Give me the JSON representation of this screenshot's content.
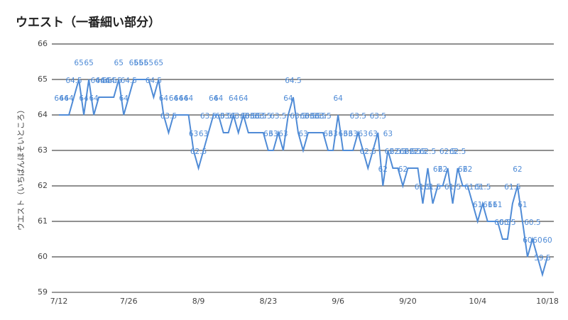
{
  "chart_data": {
    "type": "line",
    "title": "ウエスト（一番細い部分）",
    "y_label": "ウエスト（いちばんほそいところ）",
    "categories": [
      "7/12",
      null,
      null,
      null,
      null,
      null,
      null,
      null,
      null,
      null,
      null,
      null,
      null,
      null,
      "7/26",
      null,
      null,
      null,
      null,
      null,
      null,
      null,
      null,
      null,
      null,
      null,
      null,
      null,
      "8/9",
      null,
      null,
      null,
      null,
      null,
      null,
      null,
      null,
      null,
      null,
      null,
      null,
      null,
      "8/23",
      null,
      null,
      null,
      null,
      null,
      null,
      null,
      null,
      null,
      null,
      null,
      null,
      null,
      "9/6",
      null,
      null,
      null,
      null,
      null,
      null,
      null,
      null,
      null,
      null,
      null,
      null,
      null,
      "9/20",
      null,
      null,
      null,
      null,
      null,
      null,
      null,
      null,
      null,
      null,
      null,
      null,
      null,
      "10/4",
      null,
      null,
      null,
      null,
      null,
      null,
      null,
      null,
      null,
      null,
      null,
      null,
      null,
      "10/18"
    ],
    "series": [
      {
        "name": "ウエスト",
        "color": "#4f8bd6",
        "values": [
          64,
          64,
          64,
          64.5,
          65,
          64,
          65,
          64,
          64.5,
          64.5,
          64.5,
          64.5,
          65,
          64,
          64.5,
          65,
          65,
          65,
          65,
          64.5,
          65,
          64,
          63.5,
          64,
          64,
          64,
          64,
          63,
          62.5,
          63,
          63.5,
          64,
          64,
          63.5,
          63.5,
          64,
          63.5,
          64,
          63.5,
          63.5,
          63.5,
          63.5,
          63,
          63,
          63.5,
          63,
          64,
          64.5,
          63.5,
          63,
          63.5,
          63.5,
          63.5,
          63.5,
          63,
          63,
          64,
          63,
          63,
          63,
          63.5,
          63,
          62.5,
          63,
          63.5,
          62,
          63,
          62.5,
          62.5,
          62,
          62.5,
          62.5,
          62.5,
          61.5,
          62.5,
          61.5,
          62,
          62,
          62.5,
          61.5,
          62.5,
          62,
          62,
          61.5,
          61,
          61.5,
          61,
          61,
          61,
          60.5,
          60.5,
          61.5,
          62,
          61,
          60,
          60.5,
          60,
          59.5,
          60
        ]
      }
    ],
    "ylim": [
      59,
      66
    ],
    "yticks": [
      59,
      60,
      61,
      62,
      63,
      64,
      65,
      66
    ],
    "grid": true,
    "data_labels": true
  }
}
